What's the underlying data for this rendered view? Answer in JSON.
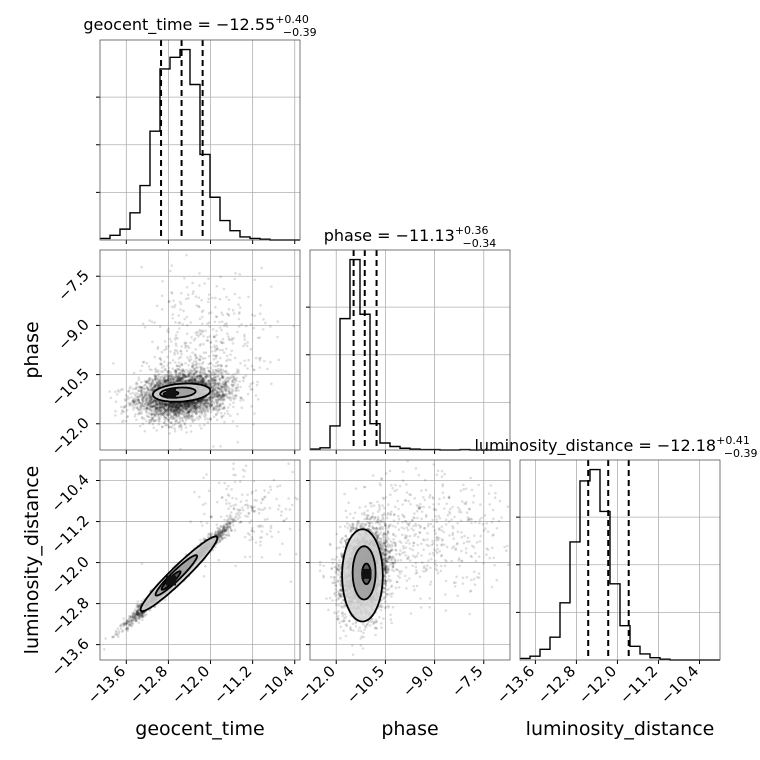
{
  "chart_data": {
    "type": "corner",
    "parameters": [
      {
        "name": "geocent_time",
        "label": "geocent_time",
        "title": "geocent_time = −12.55",
        "median": -12.55,
        "err_plus": "+0.40",
        "err_minus": "−0.39",
        "range": [
          -14.1,
          -10.3
        ],
        "ticks": [
          -13.6,
          -12.8,
          -12.0,
          -11.2,
          -10.4
        ],
        "tick_labels": [
          "−13.6",
          "−12.8",
          "−12.0",
          "−11.2",
          "−10.4"
        ],
        "hist_bins": [
          -14.1,
          -13.91,
          -13.72,
          -13.53,
          -13.34,
          -13.15,
          -12.96,
          -12.77,
          -12.58,
          -12.39,
          -12.2,
          -12.01,
          -11.82,
          -11.63,
          -11.44,
          -11.25,
          -11.06,
          -10.87,
          -10.68,
          -10.49,
          -10.3
        ],
        "hist_counts": [
          2,
          6,
          14,
          35,
          70,
          140,
          220,
          235,
          245,
          200,
          110,
          55,
          25,
          12,
          4,
          2,
          1,
          0,
          0,
          0
        ],
        "quantiles": [
          -12.94,
          -12.55,
          -12.15
        ]
      },
      {
        "name": "phase",
        "label": "phase",
        "title": "phase = −11.13",
        "median": -11.13,
        "err_plus": "+0.36",
        "err_minus": "−0.34",
        "range": [
          -12.8,
          -6.7
        ],
        "ticks": [
          -12.0,
          -10.5,
          -9.0,
          -7.5
        ],
        "tick_labels": [
          "−12.0",
          "−10.5",
          "−9.0",
          "−7.5"
        ],
        "hist_bins": [
          -12.8,
          -12.495,
          -12.19,
          -11.885,
          -11.58,
          -11.275,
          -10.97,
          -10.665,
          -10.36,
          -10.055,
          -9.75,
          -9.445,
          -9.14,
          -8.835,
          -8.53,
          -8.225,
          -7.92,
          -7.615,
          -7.31,
          -7.005,
          -6.7
        ],
        "hist_counts": [
          2,
          5,
          55,
          300,
          435,
          310,
          60,
          16,
          8,
          4,
          2,
          1,
          1,
          0,
          0,
          1,
          0,
          0,
          0,
          0
        ],
        "quantiles": [
          -11.47,
          -11.13,
          -10.77
        ]
      },
      {
        "name": "luminosity_distance",
        "label": "luminosity_distance",
        "title": "luminosity_distance = −12.18",
        "median": -12.18,
        "err_plus": "+0.41",
        "err_minus": "−0.39",
        "range": [
          -13.9,
          -10.0
        ],
        "ticks": [
          -13.6,
          -12.8,
          -12.0,
          -11.2,
          -10.4
        ],
        "tick_labels": [
          "−13.6",
          "−12.8",
          "−12.0",
          "−11.2",
          "−10.4"
        ],
        "hist_bins": [
          -13.9,
          -13.705,
          -13.51,
          -13.315,
          -13.12,
          -12.925,
          -12.73,
          -12.535,
          -12.34,
          -12.145,
          -11.95,
          -11.755,
          -11.56,
          -11.365,
          -11.17,
          -10.975,
          -10.78,
          -10.585,
          -10.39,
          -10.195,
          -10.0
        ],
        "hist_counts": [
          2,
          5,
          14,
          30,
          75,
          155,
          235,
          250,
          195,
          100,
          45,
          18,
          8,
          3,
          1,
          0,
          0,
          0,
          0,
          0
        ],
        "quantiles": [
          -12.57,
          -12.18,
          -11.78
        ]
      }
    ],
    "pairs": [
      {
        "x": "geocent_time",
        "y": "phase",
        "samples": {
          "count": 4200,
          "seed": 11,
          "center": [
            -12.55,
            -11.13
          ],
          "sd": [
            0.42,
            0.36
          ],
          "correlation": 0.2,
          "tail_fraction": 0.12,
          "tail_center": [
            -12.1,
            -9.8
          ],
          "tail_sd": [
            0.55,
            1.1
          ]
        },
        "contour_levels": [
          {
            "center": [
              -12.55,
              -11.05
            ],
            "radii": [
              0.55,
              0.27
            ],
            "angle_deg": 8
          },
          {
            "center": [
              -12.62,
              -11.05
            ],
            "radii": [
              0.34,
              0.15
            ],
            "angle_deg": 8
          },
          {
            "center": [
              -12.75,
              -11.08
            ],
            "radii": [
              0.14,
              0.06
            ],
            "angle_deg": 8
          }
        ]
      },
      {
        "x": "geocent_time",
        "y": "luminosity_distance",
        "samples": {
          "count": 4200,
          "seed": 23,
          "center": [
            -12.6,
            -12.22
          ],
          "sd": [
            0.42,
            0.42
          ],
          "correlation": 0.985,
          "tail_fraction": 0.04,
          "tail_center": [
            -11.3,
            -11.0
          ],
          "tail_sd": [
            0.5,
            0.5
          ]
        },
        "contour_levels": [
          {
            "center": [
              -12.6,
              -12.22
            ],
            "radii": [
              1.02,
              0.15
            ],
            "angle_deg": 45
          },
          {
            "center": [
              -12.65,
              -12.25
            ],
            "radii": [
              0.55,
              0.09
            ],
            "angle_deg": 45
          },
          {
            "center": [
              -12.75,
              -12.35
            ],
            "radii": [
              0.25,
              0.05
            ],
            "angle_deg": 45
          }
        ]
      },
      {
        "x": "phase",
        "y": "luminosity_distance",
        "samples": {
          "count": 4200,
          "seed": 37,
          "center": [
            -11.13,
            -12.2
          ],
          "sd": [
            0.36,
            0.42
          ],
          "correlation": 0.2,
          "tail_fraction": 0.12,
          "tail_center": [
            -9.3,
            -11.4
          ],
          "tail_sd": [
            1.2,
            0.6
          ]
        },
        "contour_levels": [
          {
            "center": [
              -11.2,
              -12.25
            ],
            "radii": [
              0.62,
              0.9
            ],
            "angle_deg": 0
          },
          {
            "center": [
              -11.15,
              -12.2
            ],
            "radii": [
              0.35,
              0.52
            ],
            "angle_deg": 0
          },
          {
            "center": [
              -11.08,
              -12.22
            ],
            "radii": [
              0.13,
              0.2
            ],
            "angle_deg": 0
          }
        ]
      }
    ],
    "grid": true,
    "colors": {
      "line": "#000000",
      "samples": "#000000",
      "fill_outer": "#d9d9d9",
      "fill_mid": "#9c9c9c",
      "fill_inner": "#4d4d4d",
      "fill_core": "#111111"
    }
  }
}
